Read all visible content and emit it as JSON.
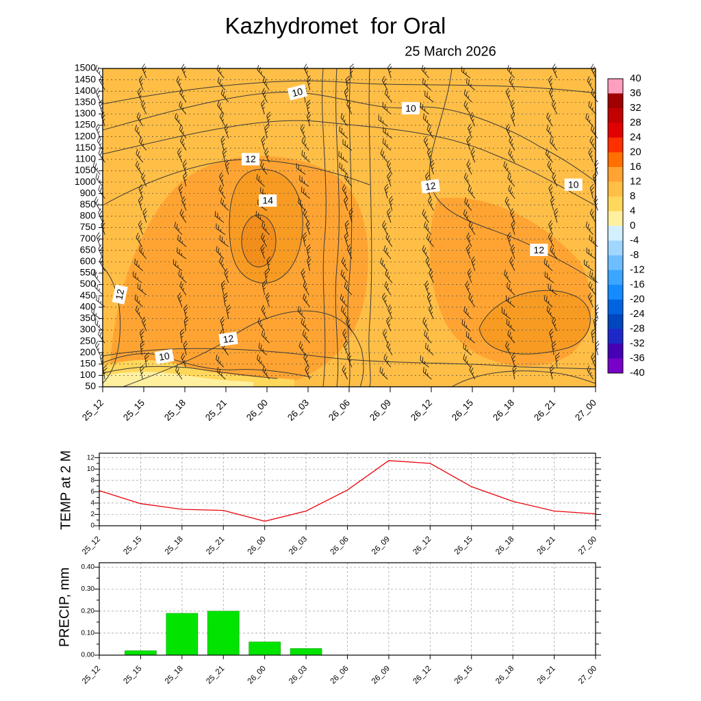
{
  "title": "Kazhydromet  for Oral",
  "subtitle": "25 March 2026",
  "time_labels": [
    "25_12",
    "25_15",
    "25_18",
    "25_21",
    "26_00",
    "26_03",
    "26_06",
    "26_09",
    "26_12",
    "26_15",
    "26_18",
    "26_21",
    "27_00"
  ],
  "chart_data": [
    {
      "name": "upper-air-temperature-wind-cross-section",
      "type": "heatmap",
      "x": [
        "25_12",
        "25_15",
        "25_18",
        "25_21",
        "26_00",
        "26_03",
        "26_06",
        "26_09",
        "26_12",
        "26_15",
        "26_18",
        "26_21",
        "27_00"
      ],
      "y_levels": [
        1500,
        1450,
        1400,
        1350,
        1300,
        1250,
        1200,
        1150,
        1100,
        1050,
        1000,
        900,
        850,
        800,
        750,
        700,
        650,
        600,
        550,
        500,
        450,
        400,
        350,
        300,
        250,
        200,
        150,
        100,
        50
      ],
      "wind_barbs": "wind barbs drawn at every time/level cell",
      "contour_labels": [
        {
          "value": "10",
          "x_pct": 39.5,
          "y_pct": 7.5,
          "rot": -14
        },
        {
          "value": "10",
          "x_pct": 62.5,
          "y_pct": 12.5
        },
        {
          "value": "12",
          "x_pct": 30,
          "y_pct": 28.5
        },
        {
          "value": "12",
          "x_pct": 66.5,
          "y_pct": 37,
          "rot": -8
        },
        {
          "value": "10",
          "x_pct": 95.5,
          "y_pct": 36.5
        },
        {
          "value": "14",
          "x_pct": 33.5,
          "y_pct": 41.5
        },
        {
          "value": "12",
          "x_pct": 88.5,
          "y_pct": 57
        },
        {
          "value": "12",
          "x_pct": 3.5,
          "y_pct": 71,
          "rot": -78
        },
        {
          "value": "12",
          "x_pct": 25.5,
          "y_pct": 85,
          "rot": -8
        },
        {
          "value": "10",
          "x_pct": 12.5,
          "y_pct": 90.5,
          "rot": -10
        }
      ],
      "colorbar": {
        "ticks": [
          40,
          36,
          32,
          28,
          24,
          20,
          16,
          12,
          8,
          4,
          0,
          -4,
          -8,
          -12,
          -16,
          -20,
          -24,
          -28,
          -32,
          -36,
          -40
        ],
        "colors": [
          "#FF9EBE",
          "#A00000",
          "#C30000",
          "#E10000",
          "#FF3000",
          "#FF7000",
          "#FFA432",
          "#FFBE46",
          "#FFD75A",
          "#FFF0A0",
          "#D2F0FF",
          "#A0D7FF",
          "#6EBEFF",
          "#3CA5FF",
          "#148CFF",
          "#0064E1",
          "#0046BE",
          "#1E28C8",
          "#4600B4",
          "#7800C8"
        ]
      }
    },
    {
      "name": "temperature-at-2m",
      "type": "line",
      "ylabel": "TEMP at 2 M",
      "x": [
        "25_12",
        "25_15",
        "25_18",
        "25_21",
        "26_00",
        "26_03",
        "26_06",
        "26_09",
        "26_12",
        "26_15",
        "26_18",
        "26_21",
        "27_00"
      ],
      "values": [
        6.2,
        3.9,
        2.9,
        2.7,
        0.8,
        2.6,
        6.3,
        11.5,
        11.0,
        6.9,
        4.3,
        2.6,
        2.1
      ],
      "yticks": [
        0,
        2,
        4,
        6,
        8,
        10,
        12
      ],
      "ylim": [
        0,
        12
      ],
      "line_color": "#E8000A"
    },
    {
      "name": "precipitation",
      "type": "bar",
      "ylabel": "PRECIP, mm",
      "x": [
        "25_12",
        "25_15",
        "25_18",
        "25_21",
        "26_00",
        "26_03",
        "26_06",
        "26_09",
        "26_12",
        "26_15",
        "26_18",
        "26_21",
        "27_00"
      ],
      "values": [
        0.0,
        0.02,
        0.19,
        0.2,
        0.06,
        0.03,
        0.0,
        0.0,
        0.0,
        0.0,
        0.0,
        0.0,
        0.0
      ],
      "ytick_labels": [
        "0.00",
        "0.10",
        "0.20",
        "0.30",
        "0.40"
      ],
      "yticks": [
        0,
        0.1,
        0.2,
        0.3,
        0.4
      ],
      "ylim": [
        0,
        0.4
      ],
      "bar_color": "#00E400"
    }
  ]
}
